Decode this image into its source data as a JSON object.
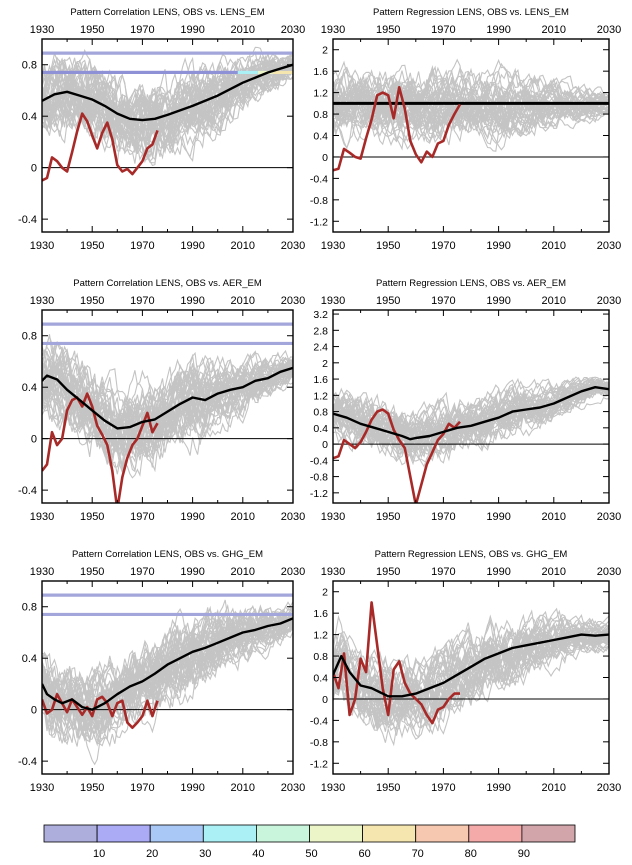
{
  "colors": {
    "ensemble": "#c4c4c4",
    "ensemble_mean": "#000000",
    "observations": "#a82a28",
    "threshold_line": "#a3a6da"
  },
  "chart_data": [
    {
      "type": "line",
      "title": "Pattern Correlation LENS, OBS vs. LENS_EM",
      "x_ticks": [
        "1930",
        "1950",
        "1970",
        "1990",
        "2010",
        "2030"
      ],
      "y_ticks": [
        "-0.4",
        "0",
        "0.4",
        "0.8"
      ],
      "xlim": [
        1930,
        2030
      ],
      "ylim": [
        -0.5,
        1.0
      ],
      "hlines": [
        0.89,
        0.74,
        0.0
      ],
      "ensemble_mean": {
        "x": [
          1930,
          1935,
          1940,
          1945,
          1950,
          1955,
          1960,
          1965,
          1970,
          1975,
          1980,
          1990,
          2000,
          2010,
          2020,
          2030
        ],
        "y": [
          0.52,
          0.57,
          0.59,
          0.56,
          0.53,
          0.48,
          0.42,
          0.38,
          0.37,
          0.38,
          0.41,
          0.48,
          0.56,
          0.66,
          0.74,
          0.8
        ]
      },
      "observations": {
        "x": [
          1930,
          1932,
          1934,
          1936,
          1938,
          1940,
          1942,
          1944,
          1946,
          1948,
          1950,
          1952,
          1954,
          1956,
          1958,
          1960,
          1962,
          1964,
          1966,
          1968,
          1970,
          1972,
          1974,
          1976
        ],
        "y": [
          -0.1,
          -0.08,
          0.08,
          0.05,
          0.0,
          -0.03,
          0.12,
          0.28,
          0.42,
          0.36,
          0.25,
          0.15,
          0.27,
          0.35,
          0.22,
          0.02,
          -0.03,
          -0.01,
          -0.05,
          0.0,
          0.05,
          0.15,
          0.18,
          0.29
        ]
      }
    },
    {
      "type": "line",
      "title": "Pattern Regression LENS, OBS vs. LENS_EM",
      "x_ticks": [
        "1930",
        "1950",
        "1970",
        "1990",
        "2010",
        "2030"
      ],
      "y_ticks": [
        "-1.2",
        "-0.8",
        "-0.4",
        "0",
        "0.4",
        "0.8",
        "1.2",
        "1.6",
        "2"
      ],
      "xlim": [
        1930,
        2030
      ],
      "ylim": [
        -1.4,
        2.2
      ],
      "hlines": [
        1.0,
        0.0
      ],
      "ensemble_mean": {
        "x": [
          1930,
          2030
        ],
        "y": [
          1.0,
          1.0
        ]
      },
      "observations": {
        "x": [
          1930,
          1932,
          1934,
          1936,
          1938,
          1940,
          1942,
          1944,
          1946,
          1948,
          1950,
          1952,
          1954,
          1956,
          1958,
          1960,
          1962,
          1964,
          1966,
          1968,
          1970,
          1972,
          1974,
          1976
        ],
        "y": [
          -0.25,
          -0.22,
          0.15,
          0.08,
          0.0,
          -0.03,
          0.35,
          0.7,
          1.15,
          1.2,
          1.15,
          0.72,
          1.3,
          0.9,
          0.3,
          0.05,
          -0.1,
          0.1,
          0.0,
          0.25,
          0.3,
          0.6,
          0.8,
          0.98
        ]
      }
    },
    {
      "type": "line",
      "title": "Pattern Correlation LENS, OBS vs. AER_EM",
      "x_ticks": [
        "1930",
        "1950",
        "1970",
        "1990",
        "2010",
        "2030"
      ],
      "y_ticks": [
        "-0.4",
        "0",
        "0.4",
        "0.8"
      ],
      "xlim": [
        1930,
        2030
      ],
      "ylim": [
        -0.5,
        1.0
      ],
      "hlines": [
        0.89,
        0.74,
        0.0
      ],
      "ensemble_mean": {
        "x": [
          1930,
          1932,
          1936,
          1940,
          1945,
          1950,
          1955,
          1960,
          1965,
          1970,
          1975,
          1980,
          1985,
          1990,
          1995,
          2000,
          2005,
          2010,
          2015,
          2020,
          2025,
          2030
        ],
        "y": [
          0.45,
          0.49,
          0.46,
          0.38,
          0.3,
          0.22,
          0.14,
          0.08,
          0.09,
          0.13,
          0.15,
          0.21,
          0.27,
          0.32,
          0.3,
          0.35,
          0.38,
          0.4,
          0.45,
          0.47,
          0.52,
          0.55
        ]
      },
      "observations": {
        "x": [
          1930,
          1932,
          1934,
          1936,
          1938,
          1940,
          1942,
          1944,
          1946,
          1948,
          1950,
          1952,
          1954,
          1956,
          1958,
          1960,
          1962,
          1964,
          1966,
          1968,
          1970,
          1972,
          1974,
          1976
        ],
        "y": [
          -0.25,
          -0.2,
          0.05,
          -0.05,
          0.0,
          0.22,
          0.3,
          0.32,
          0.25,
          0.35,
          0.25,
          0.1,
          0.03,
          -0.05,
          -0.25,
          -0.55,
          -0.3,
          -0.15,
          -0.05,
          0.0,
          0.1,
          0.2,
          0.05,
          0.12
        ]
      }
    },
    {
      "type": "line",
      "title": "Pattern Regression LENS, OBS vs. AER_EM",
      "x_ticks": [
        "1930",
        "1950",
        "1970",
        "1990",
        "2010",
        "2030"
      ],
      "y_ticks": [
        "-1.2",
        "-0.8",
        "-0.4",
        "0",
        "0.4",
        "0.8",
        "1.2",
        "1.6",
        "2",
        "2.4",
        "2.8",
        "3.2"
      ],
      "xlim": [
        1930,
        2030
      ],
      "ylim": [
        -1.45,
        3.3
      ],
      "hlines": [
        0.0
      ],
      "ensemble_mean": {
        "x": [
          1930,
          1935,
          1940,
          1945,
          1950,
          1955,
          1958,
          1960,
          1965,
          1970,
          1975,
          1980,
          1985,
          1990,
          1995,
          2000,
          2005,
          2010,
          2015,
          2020,
          2025,
          2030
        ],
        "y": [
          0.75,
          0.65,
          0.5,
          0.4,
          0.3,
          0.2,
          0.12,
          0.15,
          0.2,
          0.3,
          0.4,
          0.45,
          0.55,
          0.65,
          0.8,
          0.85,
          0.9,
          1.0,
          1.15,
          1.3,
          1.4,
          1.35
        ]
      },
      "observations": {
        "x": [
          1930,
          1932,
          1934,
          1936,
          1938,
          1940,
          1942,
          1944,
          1946,
          1948,
          1950,
          1952,
          1954,
          1956,
          1958,
          1960,
          1962,
          1964,
          1966,
          1968,
          1970,
          1972,
          1974,
          1976
        ],
        "y": [
          -0.35,
          -0.3,
          0.1,
          0.0,
          -0.1,
          0.05,
          0.3,
          0.6,
          0.8,
          0.85,
          0.75,
          0.35,
          0.1,
          -0.1,
          -0.8,
          -1.5,
          -1.0,
          -0.5,
          -0.2,
          0.1,
          0.25,
          0.5,
          0.4,
          0.55
        ]
      }
    },
    {
      "type": "line",
      "title": "Pattern Correlation LENS, OBS vs. GHG_EM",
      "x_ticks": [
        "1930",
        "1950",
        "1970",
        "1990",
        "2010",
        "2030"
      ],
      "y_ticks": [
        "-0.4",
        "0",
        "0.4",
        "0.8"
      ],
      "xlim": [
        1930,
        2030
      ],
      "ylim": [
        -0.5,
        1.0
      ],
      "hlines": [
        0.89,
        0.74,
        0.0
      ],
      "ensemble_mean": {
        "x": [
          1930,
          1932,
          1935,
          1938,
          1942,
          1946,
          1950,
          1955,
          1960,
          1965,
          1970,
          1975,
          1980,
          1985,
          1990,
          1995,
          2000,
          2005,
          2010,
          2015,
          2020,
          2025,
          2030
        ],
        "y": [
          0.2,
          0.12,
          0.08,
          0.05,
          0.08,
          0.02,
          0.0,
          0.05,
          0.12,
          0.18,
          0.22,
          0.28,
          0.35,
          0.4,
          0.45,
          0.48,
          0.52,
          0.56,
          0.6,
          0.62,
          0.65,
          0.67,
          0.71
        ]
      },
      "observations": {
        "x": [
          1930,
          1932,
          1934,
          1936,
          1938,
          1940,
          1942,
          1944,
          1946,
          1948,
          1950,
          1952,
          1954,
          1956,
          1958,
          1960,
          1962,
          1964,
          1966,
          1968,
          1970,
          1972,
          1974,
          1976
        ],
        "y": [
          0.08,
          -0.03,
          0.0,
          0.12,
          0.05,
          -0.02,
          0.08,
          0.02,
          -0.04,
          0.02,
          -0.05,
          0.08,
          0.1,
          0.05,
          -0.05,
          0.05,
          0.07,
          -0.1,
          -0.14,
          -0.1,
          -0.05,
          0.07,
          -0.05,
          0.07
        ]
      }
    },
    {
      "type": "line",
      "title": "Pattern Regression LENS, OBS vs. GHG_EM",
      "x_ticks": [
        "1930",
        "1950",
        "1970",
        "1990",
        "2010",
        "2030"
      ],
      "y_ticks": [
        "-1.2",
        "-0.8",
        "-0.4",
        "0",
        "0.4",
        "0.8",
        "1.2",
        "1.6",
        "2"
      ],
      "xlim": [
        1930,
        2030
      ],
      "ylim": [
        -1.4,
        2.2
      ],
      "hlines": [
        0.0
      ],
      "ensemble_mean": {
        "x": [
          1930,
          1933,
          1936,
          1940,
          1944,
          1948,
          1950,
          1955,
          1960,
          1965,
          1970,
          1975,
          1980,
          1985,
          1990,
          1995,
          2000,
          2005,
          2010,
          2015,
          2020,
          2025,
          2030
        ],
        "y": [
          0.45,
          0.8,
          0.5,
          0.25,
          0.2,
          0.1,
          0.05,
          0.05,
          0.1,
          0.2,
          0.3,
          0.45,
          0.6,
          0.75,
          0.85,
          0.95,
          1.0,
          1.05,
          1.1,
          1.15,
          1.2,
          1.18,
          1.2
        ]
      },
      "observations": {
        "x": [
          1930,
          1932,
          1934,
          1936,
          1938,
          1940,
          1942,
          1944,
          1946,
          1948,
          1950,
          1952,
          1954,
          1956,
          1958,
          1960,
          1962,
          1964,
          1966,
          1968,
          1970,
          1972,
          1974,
          1976
        ],
        "y": [
          0.5,
          0.2,
          0.85,
          -0.3,
          0.0,
          0.75,
          0.5,
          1.8,
          1.0,
          0.2,
          -0.3,
          0.55,
          0.7,
          0.3,
          0.1,
          0.0,
          -0.1,
          -0.3,
          -0.45,
          -0.2,
          -0.15,
          0.0,
          0.1,
          0.1
        ]
      }
    }
  ],
  "colorbar": {
    "labels": [
      "10",
      "20",
      "30",
      "40",
      "50",
      "60",
      "70",
      "80",
      "90"
    ],
    "colors": [
      "#aeaedd",
      "#aaaaf5",
      "#aac8f5",
      "#aaf0f5",
      "#c8f5dc",
      "#ebf5c8",
      "#f5e6af",
      "#f5c8af",
      "#f5aaaa",
      "#d2a5aa"
    ]
  }
}
